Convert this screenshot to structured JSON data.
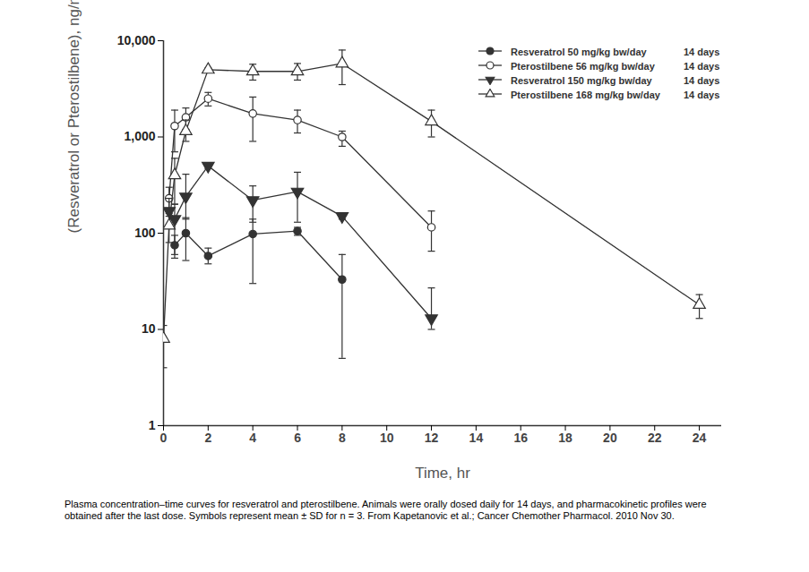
{
  "chart_data": {
    "type": "line",
    "caption": "Plasma concentration–time curves for resveratrol and pterostilbene. Animals were orally dosed daily for 14 days, and pharmacokinetic profiles were obtained after the last dose. Symbols represent mean ± SD for n = 3. From Kapetanovic et al.; Cancer Chemother Pharmacol. 2010 Nov 30.",
    "x_label": "Time, hr",
    "y_label": "(Resveratrol or Pterostilbene), ng/mL",
    "log": "y",
    "grid": false,
    "legend": "top-right",
    "xlim": [
      0,
      25
    ],
    "xticks": [
      0,
      2,
      4,
      6,
      8,
      10,
      12,
      14,
      16,
      18,
      20,
      22,
      24
    ],
    "ylim": [
      1,
      10000
    ],
    "yticks": [
      1,
      10,
      100,
      {
        "value": 1000,
        "label": "1,000"
      },
      {
        "value": 10000,
        "label": "10,000"
      }
    ],
    "series": [
      {
        "name": "Resveratrol 50 mg/kg bw/day",
        "duration": "14 days",
        "color": "#333333",
        "marker": "circle",
        "x": [
          0.5,
          1,
          2,
          4,
          6,
          8
        ],
        "values": [
          75,
          100,
          58,
          98,
          105,
          33
        ],
        "error_lower": [
          55,
          52,
          48,
          30,
          95,
          5
        ],
        "error_upper": [
          95,
          145,
          70,
          140,
          115,
          60
        ]
      },
      {
        "name": "Pterostilbene 56 mg/kg bw/day",
        "duration": "14 days",
        "color": "#333333",
        "marker": "open-circle",
        "x": [
          0.25,
          0.5,
          1,
          2,
          4,
          6,
          8,
          12
        ],
        "values": [
          230,
          1300,
          1600,
          2500,
          1750,
          1500,
          1000,
          115
        ],
        "error_lower": [
          150,
          700,
          1200,
          2100,
          900,
          1100,
          800,
          65
        ],
        "error_upper": [
          300,
          1900,
          2000,
          2900,
          2600,
          1900,
          1150,
          170
        ]
      },
      {
        "name": "Resveratrol 150 mg/kg bw/day",
        "duration": "14 days",
        "color": "#333333",
        "marker": "triangle-down",
        "x": [
          0.25,
          0.5,
          1,
          2,
          4,
          6,
          8,
          12
        ],
        "values": [
          170,
          140,
          240,
          500,
          220,
          270,
          150,
          13
        ],
        "error_lower": [
          120,
          60,
          140,
          470,
          130,
          130,
          140,
          10
        ],
        "error_upper": [
          230,
          200,
          410,
          530,
          310,
          430,
          160,
          27
        ]
      },
      {
        "name": "Pterostilbene 168 mg/kg bw/day",
        "duration": "14 days",
        "color": "#333333",
        "marker": "open-triangle",
        "x": [
          0,
          0.25,
          0.5,
          1,
          2,
          4,
          6,
          8,
          12,
          24
        ],
        "values": [
          8,
          120,
          400,
          1150,
          5000,
          4800,
          4800,
          5800,
          1450,
          18
        ],
        "error_lower": [
          4,
          80,
          200,
          900,
          4800,
          3900,
          3900,
          3500,
          1000,
          13
        ],
        "error_upper": [
          11,
          160,
          600,
          1500,
          5200,
          5700,
          5800,
          8000,
          1900,
          23
        ]
      }
    ]
  }
}
